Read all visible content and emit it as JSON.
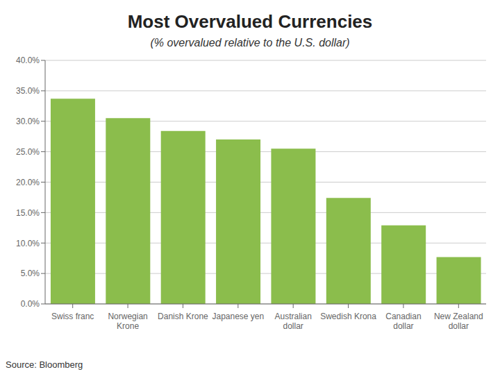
{
  "chart_data": {
    "type": "bar",
    "title": "Most Overvalued Currencies",
    "subtitle": "(% overvalued relative to the U.S. dollar)",
    "source": "Source: Bloomberg",
    "categories": [
      "Swiss franc",
      "Norwegian\nKrone",
      "Danish Krone",
      "Japanese yen",
      "Australian\ndollar",
      "Swedish Krona",
      "Canadian\ndollar",
      "New Zealand\ndollar"
    ],
    "values": [
      0.337,
      0.305,
      0.284,
      0.27,
      0.255,
      0.174,
      0.129,
      0.077
    ],
    "color": "#8BBD4C",
    "ylim": [
      0,
      0.4
    ],
    "yticks": [
      {
        "value": 0.0,
        "label": "0.0%"
      },
      {
        "value": 0.05,
        "label": "5.0%"
      },
      {
        "value": 0.1,
        "label": "10.0%"
      },
      {
        "value": 0.15,
        "label": "15.0%"
      },
      {
        "value": 0.2,
        "label": "20.0%"
      },
      {
        "value": 0.25,
        "label": "25.0%"
      },
      {
        "value": 0.3,
        "label": "30.0%"
      },
      {
        "value": 0.35,
        "label": "35.0%"
      },
      {
        "value": 0.4,
        "label": "40.0%"
      }
    ],
    "grid": true
  }
}
